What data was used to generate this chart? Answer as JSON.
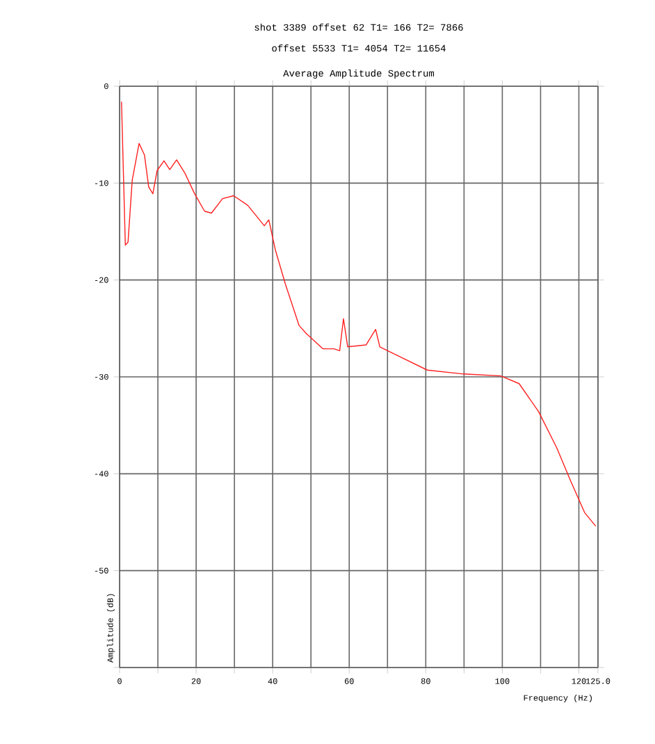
{
  "chart_data": {
    "type": "line",
    "title": "Average Amplitude Spectrum",
    "annotations": [
      "shot 3389 offset   62 T1=  166 T2=  7866",
      "offset 5533 T1= 4054 T2= 11654"
    ],
    "xlabel": "Frequency (Hz)",
    "ylabel": "Amplitude (dB)",
    "xlim": [
      0,
      125
    ],
    "ylim": [
      -60,
      0
    ],
    "xticks": [
      0,
      {
        "value": 10,
        "label": null
      },
      20,
      {
        "value": 30,
        "label": null
      },
      40,
      {
        "value": 50,
        "label": null
      },
      60,
      {
        "value": 70,
        "label": null
      },
      80,
      {
        "value": 90,
        "label": null
      },
      100,
      {
        "value": 110,
        "label": null
      },
      120,
      {
        "value": 125,
        "label": "125.0"
      }
    ],
    "yticks": [
      0,
      -10,
      -20,
      -30,
      -40,
      -50,
      {
        "value": -60,
        "label": null
      }
    ],
    "grid": true,
    "marker": "none",
    "line_style": "solid",
    "series": [
      {
        "color": "#ff2020",
        "x": [
          0.5,
          1.5,
          2.2,
          3.3,
          5.1,
          6.5,
          7.6,
          8.7,
          9.8,
          11.6,
          13.1,
          14.9,
          17.1,
          19.6,
          22.2,
          24,
          26.9,
          29.8,
          33.5,
          37.8,
          39,
          40.7,
          43.3,
          46.9,
          48.7,
          53.1,
          56,
          57.5,
          58.5,
          59.6,
          64.4,
          66.9,
          68,
          73.1,
          80.4,
          89.8,
          99.6,
          104.4,
          109.5,
          114.2,
          117.8,
          121.5,
          124.4
        ],
        "values": [
          -1.6,
          -16.4,
          -16.1,
          -9.7,
          -5.9,
          -7.1,
          -10.4,
          -11.1,
          -8.7,
          -7.7,
          -8.6,
          -7.6,
          -9,
          -11.1,
          -12.9,
          -13.1,
          -11.6,
          -11.3,
          -12.3,
          -14.4,
          -13.8,
          -16.9,
          -20.4,
          -24.7,
          -25.5,
          -27.1,
          -27.1,
          -27.3,
          -24,
          -26.9,
          -26.7,
          -25.1,
          -26.9,
          -27.9,
          -29.3,
          -29.7,
          -29.9,
          -30.7,
          -33.6,
          -37.3,
          -40.7,
          -44,
          -45.4
        ]
      }
    ]
  }
}
